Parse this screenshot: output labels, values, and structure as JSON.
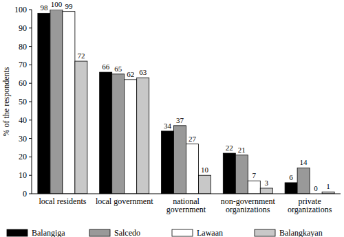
{
  "chart_data": {
    "type": "bar",
    "y_label": "% of the respondents",
    "categories": [
      "local residents",
      "local government",
      "national government",
      "non-government organizations",
      "private organizations"
    ],
    "series": [
      {
        "name": "Balangiga",
        "color": "#000000",
        "values": [
          98,
          66,
          34,
          22,
          6
        ]
      },
      {
        "name": "Salcedo",
        "color": "#999999",
        "values": [
          100,
          65,
          37,
          21,
          14
        ]
      },
      {
        "name": "Lawaan",
        "color": "#ffffff",
        "values": [
          99,
          62,
          27,
          7,
          0
        ]
      },
      {
        "name": "Balangkayan",
        "color": "#c8c8c8",
        "values": [
          72,
          63,
          10,
          3,
          1
        ]
      }
    ],
    "ylim": [
      0,
      100
    ],
    "yticks": [
      0,
      10,
      20,
      30,
      40,
      50,
      60,
      70,
      80,
      90,
      100
    ],
    "grid": false,
    "data_labels": true,
    "legend": "bottom"
  }
}
